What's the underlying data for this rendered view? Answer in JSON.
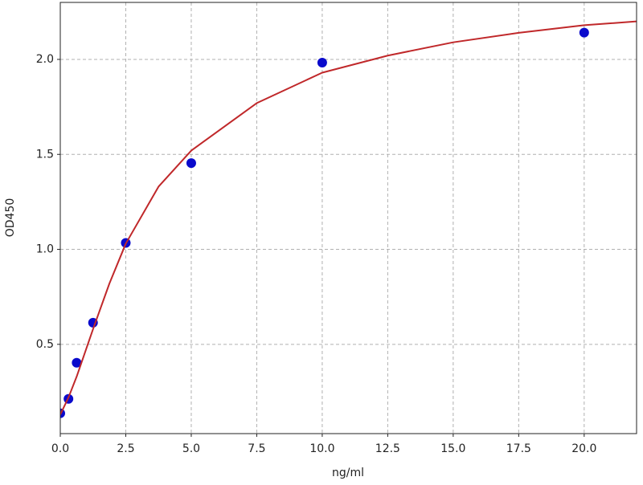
{
  "chart_data": {
    "type": "scatter",
    "xlabel": "ng/ml",
    "ylabel": "OD450",
    "xlim": [
      0,
      22
    ],
    "ylim": [
      0.03,
      2.3
    ],
    "xticks": [
      {
        "value": 0,
        "label": "0.0"
      },
      2.5,
      {
        "value": 5,
        "label": "5.0"
      },
      7.5,
      {
        "value": 10,
        "label": "10.0"
      },
      12.5,
      {
        "value": 15,
        "label": "15.0"
      },
      17.5,
      {
        "value": 20,
        "label": "20.0"
      }
    ],
    "yticks": [
      0.5,
      {
        "value": 1,
        "label": "1.0"
      },
      1.5,
      {
        "value": 2,
        "label": "2.0"
      }
    ],
    "grid": true,
    "series": [
      {
        "type": "scatter",
        "color": "#0a0acc",
        "x": [
          0,
          0.3125,
          0.625,
          1.25,
          2.5,
          5,
          10,
          20
        ],
        "values": [
          0.137,
          0.213,
          0.403,
          0.614,
          1.034,
          1.454,
          1.983,
          2.141
        ]
      },
      {
        "type": "line",
        "color": "#c0282a",
        "x": [
          0,
          0.3125,
          0.625,
          1.25,
          1.875,
          2.5,
          3.75,
          5,
          7.5,
          10,
          12.5,
          15,
          17.5,
          20,
          22
        ],
        "values": [
          0.13,
          0.22,
          0.33,
          0.58,
          0.82,
          1.03,
          1.33,
          1.52,
          1.77,
          1.93,
          2.02,
          2.09,
          2.14,
          2.18,
          2.2
        ]
      }
    ]
  }
}
